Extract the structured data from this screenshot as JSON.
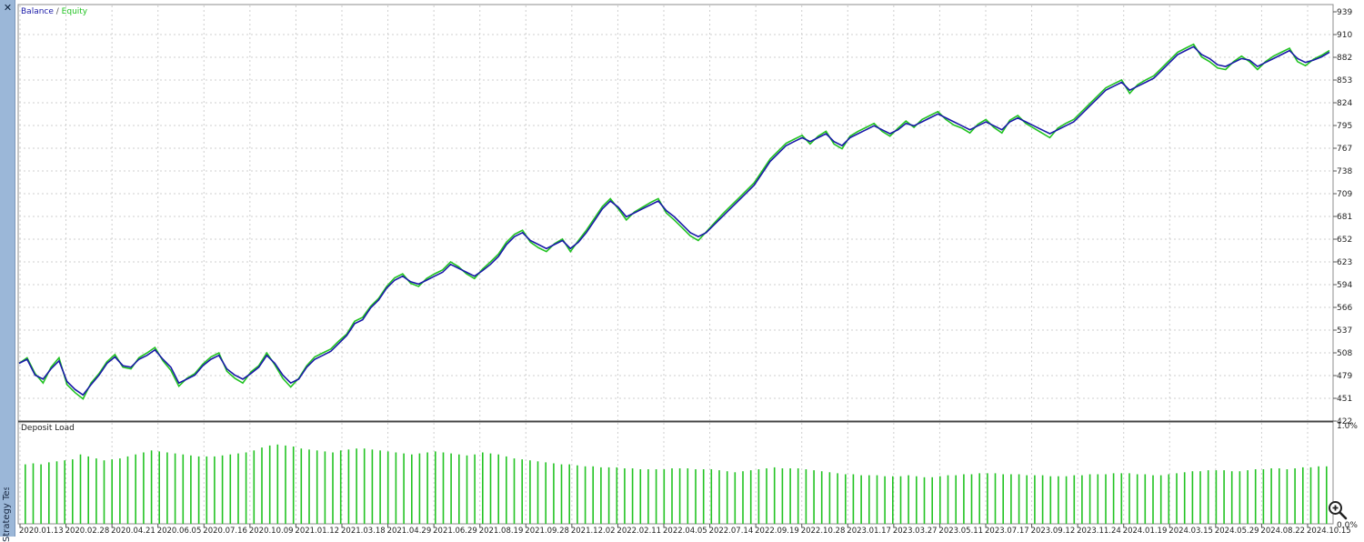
{
  "window": {
    "close_label": "✕",
    "side_tab_label": "Strategy Tester"
  },
  "icons": {
    "close": "close-icon",
    "zoom": "zoom-in-icon"
  },
  "colors": {
    "balance": "#1a1aa8",
    "equity": "#22c322",
    "deposit_load": "#22c322",
    "grid": "#cfcfcf"
  },
  "chart_data": [
    {
      "type": "line",
      "title": "",
      "legend": {
        "placement": "top-left",
        "entries": [
          "Balance",
          "Equity"
        ],
        "separator": " / "
      },
      "y_ticks": [
        "939",
        "910",
        "882",
        "853",
        "824",
        "795",
        "767",
        "738",
        "709",
        "681",
        "652",
        "623",
        "594",
        "566",
        "537",
        "508",
        "479",
        "451",
        "422"
      ],
      "ylim": [
        422,
        939
      ],
      "grid": true,
      "series": [
        {
          "name": "Balance",
          "values": [
            495,
            500,
            480,
            475,
            488,
            498,
            472,
            462,
            455,
            468,
            480,
            495,
            503,
            492,
            490,
            500,
            505,
            512,
            500,
            490,
            470,
            475,
            480,
            492,
            500,
            505,
            488,
            480,
            475,
            482,
            490,
            505,
            495,
            480,
            470,
            475,
            490,
            500,
            505,
            510,
            520,
            530,
            545,
            550,
            565,
            575,
            590,
            600,
            605,
            598,
            595,
            600,
            605,
            610,
            620,
            615,
            610,
            605,
            612,
            620,
            630,
            645,
            655,
            660,
            650,
            645,
            640,
            645,
            650,
            640,
            648,
            660,
            675,
            690,
            700,
            692,
            680,
            685,
            690,
            695,
            700,
            688,
            680,
            670,
            660,
            655,
            660,
            670,
            680,
            690,
            700,
            710,
            720,
            735,
            750,
            760,
            770,
            775,
            780,
            775,
            780,
            785,
            775,
            770,
            780,
            785,
            790,
            795,
            790,
            785,
            790,
            798,
            795,
            800,
            805,
            810,
            805,
            800,
            795,
            790,
            795,
            800,
            795,
            790,
            800,
            805,
            800,
            795,
            790,
            785,
            790,
            795,
            800,
            810,
            820,
            830,
            840,
            845,
            850,
            840,
            845,
            850,
            855,
            865,
            875,
            885,
            890,
            895,
            885,
            880,
            872,
            870,
            875,
            880,
            878,
            870,
            875,
            880,
            885,
            890,
            880,
            875,
            878,
            882,
            888
          ]
        },
        {
          "name": "Equity",
          "values": [
            495,
            502,
            482,
            470,
            490,
            502,
            468,
            458,
            450,
            470,
            482,
            497,
            506,
            490,
            488,
            502,
            508,
            515,
            498,
            486,
            466,
            476,
            482,
            494,
            503,
            508,
            485,
            476,
            470,
            484,
            492,
            508,
            493,
            476,
            465,
            476,
            492,
            503,
            508,
            513,
            523,
            532,
            548,
            553,
            567,
            577,
            592,
            603,
            608,
            596,
            592,
            602,
            608,
            613,
            623,
            617,
            608,
            602,
            614,
            623,
            633,
            648,
            658,
            663,
            648,
            641,
            636,
            646,
            652,
            636,
            650,
            663,
            678,
            693,
            703,
            690,
            676,
            686,
            692,
            698,
            703,
            685,
            676,
            666,
            656,
            650,
            661,
            672,
            683,
            693,
            703,
            713,
            723,
            738,
            753,
            763,
            773,
            778,
            783,
            772,
            782,
            788,
            772,
            766,
            782,
            788,
            793,
            798,
            788,
            782,
            792,
            801,
            793,
            803,
            808,
            813,
            803,
            796,
            792,
            786,
            797,
            803,
            793,
            786,
            802,
            808,
            798,
            792,
            786,
            780,
            792,
            798,
            803,
            813,
            823,
            833,
            843,
            848,
            853,
            836,
            847,
            853,
            858,
            868,
            878,
            888,
            893,
            898,
            882,
            876,
            868,
            866,
            876,
            883,
            876,
            866,
            876,
            883,
            888,
            893,
            876,
            871,
            879,
            884,
            890
          ]
        }
      ]
    },
    {
      "type": "bar",
      "title": "Deposit Load",
      "y_ticks": [
        "1.0%",
        "0.0%"
      ],
      "ylim": [
        0,
        1.0
      ],
      "values": [
        0.6,
        0.61,
        0.6,
        0.62,
        0.63,
        0.64,
        0.65,
        0.7,
        0.68,
        0.66,
        0.64,
        0.65,
        0.66,
        0.68,
        0.7,
        0.72,
        0.74,
        0.73,
        0.72,
        0.71,
        0.7,
        0.69,
        0.68,
        0.68,
        0.68,
        0.69,
        0.7,
        0.71,
        0.72,
        0.74,
        0.77,
        0.79,
        0.8,
        0.79,
        0.78,
        0.76,
        0.75,
        0.74,
        0.73,
        0.72,
        0.74,
        0.75,
        0.76,
        0.76,
        0.75,
        0.74,
        0.73,
        0.72,
        0.71,
        0.7,
        0.71,
        0.72,
        0.73,
        0.72,
        0.71,
        0.7,
        0.69,
        0.7,
        0.72,
        0.71,
        0.7,
        0.68,
        0.66,
        0.65,
        0.64,
        0.63,
        0.62,
        0.61,
        0.6,
        0.6,
        0.59,
        0.58,
        0.58,
        0.57,
        0.57,
        0.57,
        0.56,
        0.56,
        0.55,
        0.55,
        0.55,
        0.55,
        0.56,
        0.56,
        0.56,
        0.55,
        0.55,
        0.55,
        0.54,
        0.53,
        0.52,
        0.53,
        0.54,
        0.55,
        0.56,
        0.57,
        0.56,
        0.56,
        0.56,
        0.55,
        0.54,
        0.53,
        0.52,
        0.51,
        0.5,
        0.5,
        0.49,
        0.49,
        0.49,
        0.48,
        0.48,
        0.48,
        0.49,
        0.48,
        0.47,
        0.47,
        0.48,
        0.49,
        0.49,
        0.5,
        0.5,
        0.51,
        0.51,
        0.51,
        0.5,
        0.5,
        0.5,
        0.49,
        0.49,
        0.49,
        0.48,
        0.48,
        0.48,
        0.49,
        0.49,
        0.5,
        0.5,
        0.5,
        0.51,
        0.51,
        0.51,
        0.5,
        0.5,
        0.49,
        0.49,
        0.5,
        0.51,
        0.52,
        0.53,
        0.53,
        0.54,
        0.54,
        0.54,
        0.53,
        0.53,
        0.54,
        0.55,
        0.55,
        0.56,
        0.56,
        0.55,
        0.56,
        0.57,
        0.57,
        0.58,
        0.58
      ],
      "x_ticks": [
        "2020.01.13",
        "2020.02.28",
        "2020.04.21",
        "2020.06.05",
        "2020.07.16",
        "2020.10.09",
        "2021.01.12",
        "2021.03.18",
        "2021.04.29",
        "2021.06.29",
        "2021.08.19",
        "2021.09.28",
        "2021.12.02",
        "2022.02.11",
        "2022.04.05",
        "2022.07.14",
        "2022.09.19",
        "2022.10.28",
        "2023.01.17",
        "2023.03.27",
        "2023.05.11",
        "2023.07.17",
        "2023.09.12",
        "2023.11.24",
        "2024.01.19",
        "2024.03.15",
        "2024.05.29",
        "2024.08.22",
        "2024.10.15"
      ]
    }
  ]
}
